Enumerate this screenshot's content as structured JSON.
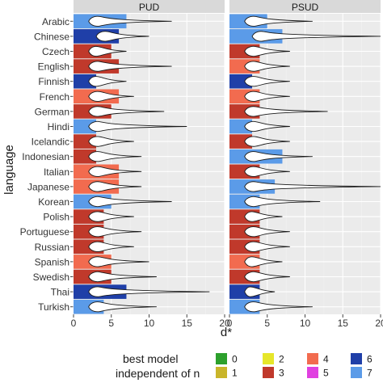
{
  "chart_data": {
    "type": "bar",
    "ylabel": "language",
    "xlabel": "d*",
    "xlim": [
      0,
      20
    ],
    "x_ticks": [
      0,
      5,
      10,
      15,
      20
    ],
    "grid": true,
    "overlay": "violin",
    "categories": [
      "Arabic",
      "Chinese",
      "Czech",
      "English",
      "Finnish",
      "French",
      "German",
      "Hindi",
      "Icelandic",
      "Indonesian",
      "Italian",
      "Japanese",
      "Korean",
      "Polish",
      "Portuguese",
      "Russian",
      "Spanish",
      "Swedish",
      "Thai",
      "Turkish"
    ],
    "legend": {
      "title_line1": "best model",
      "title_line2": "independent of n",
      "placement": "bottom",
      "items": [
        {
          "label": "0",
          "color": "#2ca02c"
        },
        {
          "label": "1",
          "color": "#c9b52a"
        },
        {
          "label": "2",
          "color": "#e6e62a"
        },
        {
          "label": "3",
          "color": "#c0392b"
        },
        {
          "label": "4",
          "color": "#f26b4f"
        },
        {
          "label": "5",
          "color": "#e040e0"
        },
        {
          "label": "6",
          "color": "#1f3fa8"
        },
        {
          "label": "7",
          "color": "#5b9be8"
        }
      ]
    },
    "panels": [
      {
        "title": "PUD",
        "bars": [
          {
            "value": 7.0,
            "model": 7
          },
          {
            "value": 6.0,
            "model": 6
          },
          {
            "value": 5.0,
            "model": 3
          },
          {
            "value": 6.0,
            "model": 3
          },
          {
            "value": 3.0,
            "model": 6
          },
          {
            "value": 6.0,
            "model": 4
          },
          {
            "value": 5.0,
            "model": 3
          },
          {
            "value": 3.0,
            "model": 7
          },
          {
            "value": 3.0,
            "model": 3
          },
          {
            "value": 3.0,
            "model": 3
          },
          {
            "value": 6.0,
            "model": 4
          },
          {
            "value": 6.0,
            "model": 4
          },
          {
            "value": 5.0,
            "model": 7
          },
          {
            "value": 4.0,
            "model": 3
          },
          {
            "value": 4.0,
            "model": 3
          },
          {
            "value": 4.0,
            "model": 3
          },
          {
            "value": 5.0,
            "model": 4
          },
          {
            "value": 5.0,
            "model": 3
          },
          {
            "value": 7.0,
            "model": 6
          },
          {
            "value": 4.0,
            "model": 7
          }
        ],
        "spread": [
          {
            "min": 2,
            "max": 13
          },
          {
            "min": 3,
            "max": 10
          },
          {
            "min": 2,
            "max": 7
          },
          {
            "min": 2,
            "max": 13
          },
          {
            "min": 2,
            "max": 7
          },
          {
            "min": 2,
            "max": 8
          },
          {
            "min": 2,
            "max": 12
          },
          {
            "min": 2,
            "max": 15
          },
          {
            "min": 2,
            "max": 8
          },
          {
            "min": 2,
            "max": 9
          },
          {
            "min": 2,
            "max": 9
          },
          {
            "min": 2,
            "max": 9
          },
          {
            "min": 2,
            "max": 13
          },
          {
            "min": 2,
            "max": 8
          },
          {
            "min": 2,
            "max": 9
          },
          {
            "min": 2,
            "max": 8
          },
          {
            "min": 2,
            "max": 10
          },
          {
            "min": 2,
            "max": 11
          },
          {
            "min": 2,
            "max": 18
          },
          {
            "min": 2,
            "max": 11
          }
        ]
      },
      {
        "title": "PSUD",
        "bars": [
          {
            "value": 5.0,
            "model": 7
          },
          {
            "value": 7.0,
            "model": 7
          },
          {
            "value": 4.0,
            "model": 3
          },
          {
            "value": 4.0,
            "model": 4
          },
          {
            "value": 3.0,
            "model": 6
          },
          {
            "value": 4.0,
            "model": 4
          },
          {
            "value": 4.0,
            "model": 3
          },
          {
            "value": 3.0,
            "model": 7
          },
          {
            "value": 3.0,
            "model": 3
          },
          {
            "value": 7.0,
            "model": 7
          },
          {
            "value": 4.0,
            "model": 3
          },
          {
            "value": 6.0,
            "model": 7
          },
          {
            "value": 4.0,
            "model": 7
          },
          {
            "value": 4.0,
            "model": 3
          },
          {
            "value": 4.0,
            "model": 3
          },
          {
            "value": 4.0,
            "model": 3
          },
          {
            "value": 4.0,
            "model": 4
          },
          {
            "value": 4.0,
            "model": 3
          },
          {
            "value": 4.0,
            "model": 6
          },
          {
            "value": 4.0,
            "model": 7
          }
        ],
        "spread": [
          {
            "min": 2,
            "max": 11
          },
          {
            "min": 3,
            "max": 20
          },
          {
            "min": 2,
            "max": 8
          },
          {
            "min": 2,
            "max": 8
          },
          {
            "min": 2,
            "max": 8
          },
          {
            "min": 2,
            "max": 8
          },
          {
            "min": 2,
            "max": 13
          },
          {
            "min": 2,
            "max": 8
          },
          {
            "min": 2,
            "max": 8
          },
          {
            "min": 2,
            "max": 11
          },
          {
            "min": 2,
            "max": 8
          },
          {
            "min": 2,
            "max": 20
          },
          {
            "min": 2,
            "max": 12
          },
          {
            "min": 2,
            "max": 7
          },
          {
            "min": 2,
            "max": 8
          },
          {
            "min": 2,
            "max": 8
          },
          {
            "min": 2,
            "max": 7
          },
          {
            "min": 2,
            "max": 8
          },
          {
            "min": 2,
            "max": 6
          },
          {
            "min": 2,
            "max": 11
          }
        ]
      }
    ]
  }
}
